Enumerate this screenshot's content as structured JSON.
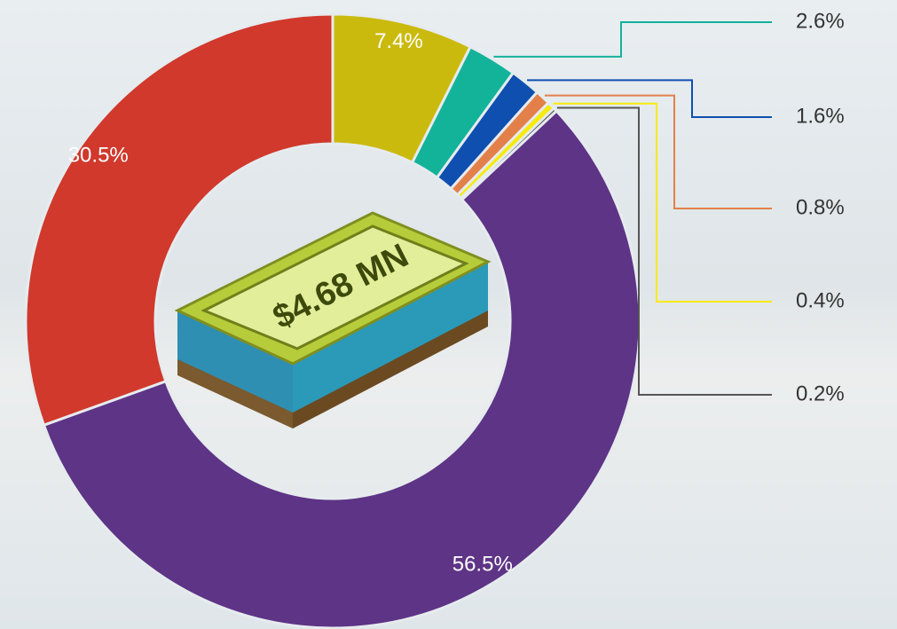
{
  "chart_data": {
    "type": "donut",
    "center_text": "$4.68 MN",
    "values": [
      7.4,
      2.6,
      1.6,
      0.8,
      0.4,
      0.2,
      56.5,
      30.5
    ],
    "value_labels": [
      "7.4%",
      "2.6%",
      "1.6%",
      "0.8%",
      "0.4%",
      "0.2%",
      "56.5%",
      "30.5%"
    ],
    "colors": [
      "#cbba0e",
      "#13b39a",
      "#0f4fb0",
      "#e3804a",
      "#f7ea0c",
      "#555555",
      "#5e3486",
      "#d0392c"
    ]
  }
}
